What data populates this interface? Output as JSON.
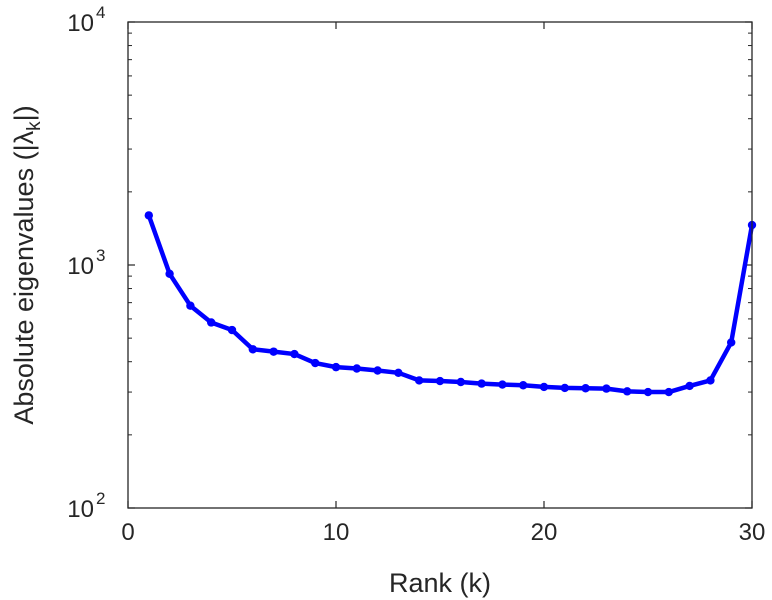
{
  "chart_data": {
    "type": "line",
    "xlabel": "Rank (k)",
    "ylabel": "Absolute eigenvalues (|λ_k|)",
    "ylabel_parts": {
      "prefix": "Absolute eigenvalues (|",
      "lambda": "λ",
      "subscript": "k",
      "suffix": "|)"
    },
    "xlim": [
      0,
      30
    ],
    "ylim": [
      100,
      10000
    ],
    "yscale": "log",
    "grid": false,
    "legend": "none",
    "xticks": [
      0,
      10,
      20,
      30
    ],
    "xtick_labels": [
      "0",
      "10",
      "20",
      "30"
    ],
    "yticks": [
      100,
      1000,
      10000
    ],
    "ytick_labels": [
      {
        "base": "10",
        "exp": "2"
      },
      {
        "base": "10",
        "exp": "3"
      },
      {
        "base": "10",
        "exp": "4"
      }
    ],
    "series": [
      {
        "color": "#0000ff",
        "marker": "circle",
        "x": [
          1,
          2,
          3,
          4,
          5,
          6,
          7,
          8,
          9,
          10,
          11,
          12,
          13,
          14,
          15,
          16,
          17,
          18,
          19,
          20,
          21,
          22,
          23,
          24,
          25,
          26,
          27,
          28,
          29,
          30
        ],
        "y": [
          1600,
          920,
          680,
          580,
          540,
          450,
          440,
          430,
          395,
          380,
          375,
          368,
          360,
          335,
          333,
          330,
          325,
          322,
          320,
          315,
          312,
          311,
          310,
          302,
          300,
          300,
          318,
          335,
          480,
          1460
        ]
      }
    ]
  }
}
